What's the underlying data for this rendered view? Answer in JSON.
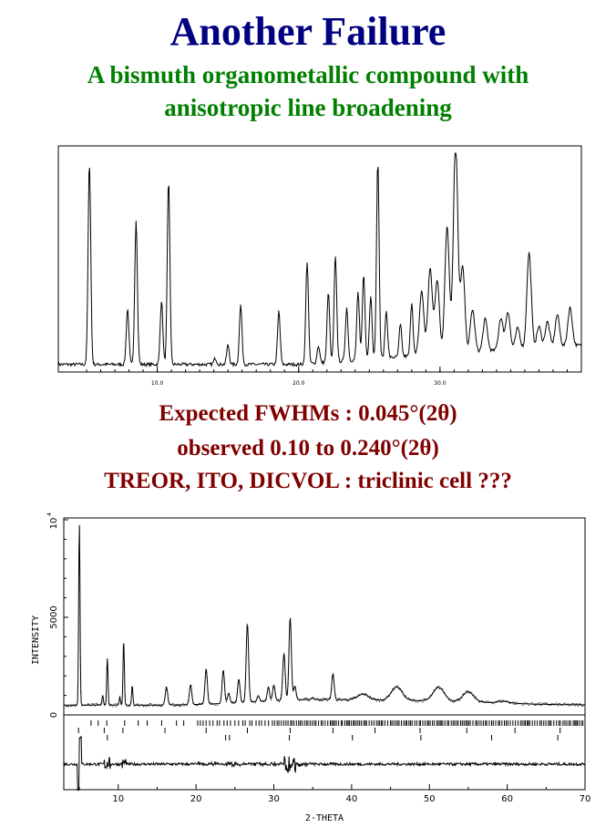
{
  "header": {
    "title": "Another Failure",
    "subtitle_line1": "A bismuth organometallic compound with",
    "subtitle_line2": "anisotropic line broadening"
  },
  "notes": {
    "line1": "Expected FWHMs : 0.045°(2θ)",
    "line2": "observed 0.10 to 0.240°(2θ)",
    "line3": "TREOR, ITO, DICVOL : triclinic cell ???"
  },
  "colors": {
    "title": "#000080",
    "subtitle": "#008000",
    "notes": "#800000"
  },
  "chart_data": [
    {
      "type": "line",
      "title": "",
      "xlabel": "",
      "ylabel": "",
      "x_ticks": [
        "10.0",
        "20.0",
        "30.0"
      ],
      "xlim": [
        3,
        40
      ],
      "peaks": [
        {
          "x": 5.2,
          "h": 0.95
        },
        {
          "x": 7.9,
          "h": 0.26
        },
        {
          "x": 8.5,
          "h": 0.68
        },
        {
          "x": 10.3,
          "h": 0.3
        },
        {
          "x": 10.8,
          "h": 0.86
        },
        {
          "x": 14.1,
          "h": 0.03
        },
        {
          "x": 15.0,
          "h": 0.09
        },
        {
          "x": 15.9,
          "h": 0.28
        },
        {
          "x": 18.6,
          "h": 0.25
        },
        {
          "x": 20.6,
          "h": 0.48
        },
        {
          "x": 21.4,
          "h": 0.08
        },
        {
          "x": 22.1,
          "h": 0.33
        },
        {
          "x": 22.6,
          "h": 0.5
        },
        {
          "x": 23.4,
          "h": 0.25
        },
        {
          "x": 24.2,
          "h": 0.32
        },
        {
          "x": 24.6,
          "h": 0.4
        },
        {
          "x": 25.1,
          "h": 0.3
        },
        {
          "x": 25.6,
          "h": 0.92
        },
        {
          "x": 26.2,
          "h": 0.22
        },
        {
          "x": 27.2,
          "h": 0.15
        },
        {
          "x": 28.0,
          "h": 0.25
        },
        {
          "x": 28.7,
          "h": 0.3
        },
        {
          "x": 29.3,
          "h": 0.4
        },
        {
          "x": 29.8,
          "h": 0.35
        },
        {
          "x": 30.5,
          "h": 0.6
        },
        {
          "x": 31.1,
          "h": 1.0
        },
        {
          "x": 31.6,
          "h": 0.4
        },
        {
          "x": 32.3,
          "h": 0.2
        },
        {
          "x": 33.2,
          "h": 0.15
        },
        {
          "x": 34.3,
          "h": 0.15
        },
        {
          "x": 34.8,
          "h": 0.18
        },
        {
          "x": 35.5,
          "h": 0.1
        },
        {
          "x": 36.3,
          "h": 0.45
        },
        {
          "x": 37.0,
          "h": 0.1
        },
        {
          "x": 37.6,
          "h": 0.12
        },
        {
          "x": 38.3,
          "h": 0.15
        },
        {
          "x": 39.2,
          "h": 0.18
        }
      ]
    },
    {
      "type": "line",
      "title": "",
      "xlabel": "2-THETA",
      "ylabel": "INTENSITY",
      "xlim": [
        3,
        70
      ],
      "ylim": [
        0,
        10000
      ],
      "x_ticks": [
        "10",
        "20",
        "30",
        "40",
        "50",
        "60",
        "70"
      ],
      "y_ticks": [
        "0",
        "5000"
      ],
      "y_top_label": "10",
      "y_top_exponent": "4",
      "peaks": [
        {
          "x": 5.0,
          "y": 9800
        },
        {
          "x": 8.0,
          "y": 1000
        },
        {
          "x": 8.6,
          "y": 2900
        },
        {
          "x": 10.2,
          "y": 900
        },
        {
          "x": 10.7,
          "y": 3800
        },
        {
          "x": 11.8,
          "y": 1500
        },
        {
          "x": 16.2,
          "y": 1400
        },
        {
          "x": 19.3,
          "y": 1500
        },
        {
          "x": 21.3,
          "y": 2300
        },
        {
          "x": 23.5,
          "y": 2200
        },
        {
          "x": 24.2,
          "y": 1000
        },
        {
          "x": 25.5,
          "y": 1700
        },
        {
          "x": 26.6,
          "y": 4500
        },
        {
          "x": 28.0,
          "y": 800
        },
        {
          "x": 29.3,
          "y": 1200
        },
        {
          "x": 30.0,
          "y": 1300
        },
        {
          "x": 31.3,
          "y": 2900
        },
        {
          "x": 32.1,
          "y": 4700
        },
        {
          "x": 32.7,
          "y": 1200
        },
        {
          "x": 35.0,
          "y": 600
        },
        {
          "x": 37.6,
          "y": 1800
        },
        {
          "x": 41.5,
          "y": 800
        },
        {
          "x": 45.8,
          "y": 1200
        },
        {
          "x": 51.2,
          "y": 1200
        },
        {
          "x": 55.0,
          "y": 1000
        },
        {
          "x": 59.5,
          "y": 600
        },
        {
          "x": 64.5,
          "y": 500
        }
      ]
    }
  ]
}
